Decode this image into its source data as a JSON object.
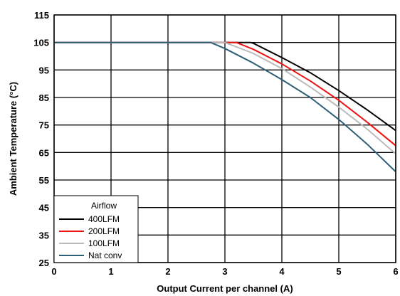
{
  "chart_data": {
    "type": "line",
    "title": "",
    "xlabel": "Output Current per channel (A)",
    "ylabel": "Ambient Temperature (°C)",
    "xlim": [
      0,
      6
    ],
    "ylim": [
      25,
      115
    ],
    "xticks": [
      0,
      1,
      2,
      3,
      4,
      5,
      6
    ],
    "yticks": [
      25,
      35,
      45,
      55,
      65,
      75,
      85,
      95,
      105,
      115
    ],
    "grid": true,
    "legend": {
      "title": "Airflow",
      "placement": "bottom-left"
    },
    "series": [
      {
        "name": "400LFM",
        "color": "#000000",
        "x": [
          0,
          3.45,
          3.5,
          4.0,
          4.5,
          5.0,
          5.5,
          6.0
        ],
        "y": [
          105,
          105,
          104.7,
          99.5,
          94.0,
          87.5,
          80.5,
          73.0
        ]
      },
      {
        "name": "200LFM",
        "color": "#ee1111",
        "x": [
          0,
          3.2,
          3.5,
          4.0,
          4.5,
          5.0,
          5.5,
          6.0
        ],
        "y": [
          105,
          105,
          102.5,
          97.2,
          91.0,
          84.0,
          76.0,
          67.5
        ]
      },
      {
        "name": "100LFM",
        "color": "#bbbbbb",
        "x": [
          0,
          3.0,
          3.5,
          4.0,
          4.5,
          5.0,
          5.5,
          6.0
        ],
        "y": [
          105,
          105,
          101.0,
          95.5,
          88.8,
          81.5,
          73.5,
          64.5
        ]
      },
      {
        "name": "Nat conv",
        "color": "#2e5f78",
        "x": [
          0,
          2.75,
          3.0,
          3.5,
          4.0,
          4.5,
          5.0,
          5.5,
          6.0
        ],
        "y": [
          105,
          105,
          102.8,
          97.5,
          91.5,
          85.0,
          77.0,
          68.0,
          58.0
        ]
      }
    ]
  }
}
